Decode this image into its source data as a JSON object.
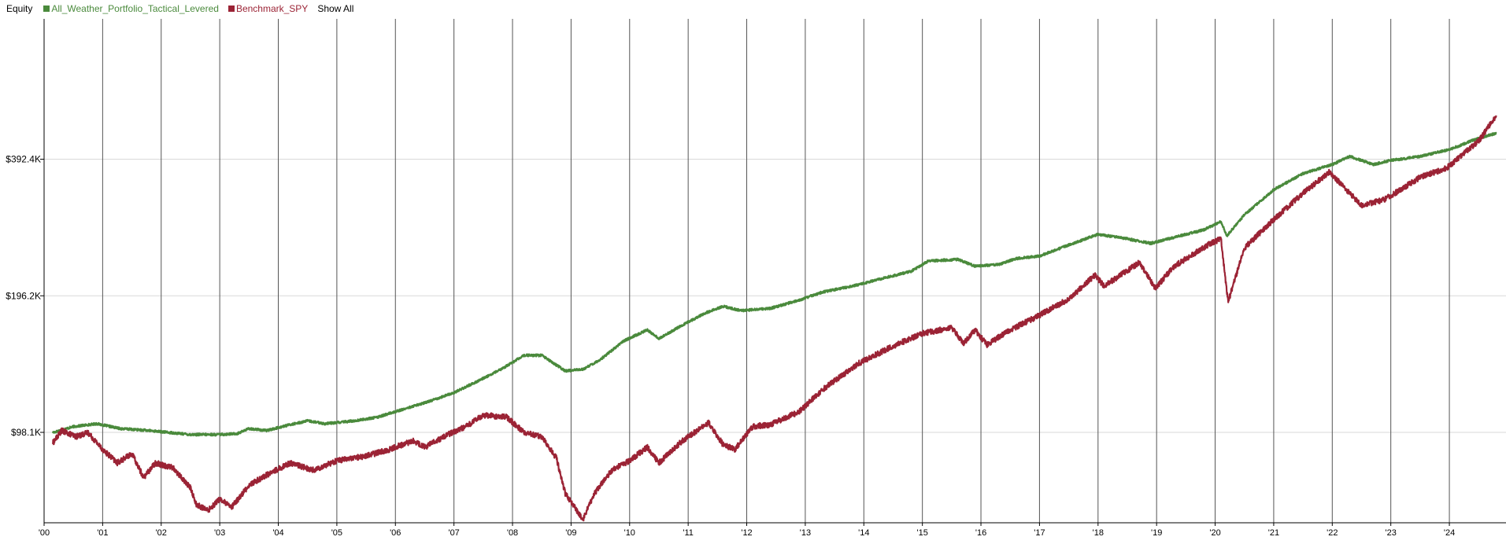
{
  "legend": {
    "title": "Equity",
    "show_all": "Show All"
  },
  "colors": {
    "portfolio": "#4a8a3c",
    "benchmark": "#9b2335",
    "gridline": "#d9d9d9",
    "year_line": "#555555"
  },
  "chart_data": {
    "type": "line",
    "log_scale": true,
    "ylim": [
      62000,
      800000
    ],
    "xlim": [
      2000.0,
      2024.9
    ],
    "y_ticks": [
      {
        "value": 98100,
        "label": "$98.1K"
      },
      {
        "value": 196200,
        "label": "$196.2K"
      },
      {
        "value": 392400,
        "label": "$392.4K"
      }
    ],
    "x_ticks": [
      {
        "value": 2000,
        "label": "'00"
      },
      {
        "value": 2001,
        "label": "'01"
      },
      {
        "value": 2002,
        "label": "'02"
      },
      {
        "value": 2003,
        "label": "'03"
      },
      {
        "value": 2004,
        "label": "'04"
      },
      {
        "value": 2005,
        "label": "'05"
      },
      {
        "value": 2006,
        "label": "'06"
      },
      {
        "value": 2007,
        "label": "'07"
      },
      {
        "value": 2008,
        "label": "'08"
      },
      {
        "value": 2009,
        "label": "'09"
      },
      {
        "value": 2010,
        "label": "'10"
      },
      {
        "value": 2011,
        "label": "'11"
      },
      {
        "value": 2012,
        "label": "'12"
      },
      {
        "value": 2013,
        "label": "'13"
      },
      {
        "value": 2014,
        "label": "'14"
      },
      {
        "value": 2015,
        "label": "'15"
      },
      {
        "value": 2016,
        "label": "'16"
      },
      {
        "value": 2017,
        "label": "'17"
      },
      {
        "value": 2018,
        "label": "'18"
      },
      {
        "value": 2019,
        "label": "'19"
      },
      {
        "value": 2020,
        "label": "'20"
      },
      {
        "value": 2021,
        "label": "'21"
      },
      {
        "value": 2022,
        "label": "'22"
      },
      {
        "value": 2023,
        "label": "'23"
      },
      {
        "value": 2024,
        "label": "'24"
      }
    ],
    "series": [
      {
        "name": "All_Weather_Portfolio_Tactical_Levered",
        "color": "#4a8a3c",
        "points": [
          [
            2000.15,
            98000
          ],
          [
            2000.5,
            101000
          ],
          [
            2000.9,
            102500
          ],
          [
            2001.3,
            100000
          ],
          [
            2001.8,
            99000
          ],
          [
            2002.5,
            97000
          ],
          [
            2003.0,
            97000
          ],
          [
            2003.3,
            97500
          ],
          [
            2003.5,
            100000
          ],
          [
            2003.8,
            99000
          ],
          [
            2004.2,
            102000
          ],
          [
            2004.5,
            104000
          ],
          [
            2004.8,
            102500
          ],
          [
            2005.3,
            104000
          ],
          [
            2005.7,
            106000
          ],
          [
            2006.0,
            109000
          ],
          [
            2006.5,
            114000
          ],
          [
            2007.0,
            120000
          ],
          [
            2007.5,
            129000
          ],
          [
            2007.8,
            135000
          ],
          [
            2008.2,
            145000
          ],
          [
            2008.5,
            145000
          ],
          [
            2008.9,
            134000
          ],
          [
            2009.2,
            135000
          ],
          [
            2009.5,
            142000
          ],
          [
            2009.9,
            156000
          ],
          [
            2010.3,
            165000
          ],
          [
            2010.5,
            158000
          ],
          [
            2010.9,
            169000
          ],
          [
            2011.3,
            180000
          ],
          [
            2011.6,
            186000
          ],
          [
            2011.9,
            182000
          ],
          [
            2012.4,
            184000
          ],
          [
            2012.9,
            192000
          ],
          [
            2013.3,
            200000
          ],
          [
            2013.8,
            206000
          ],
          [
            2014.3,
            214000
          ],
          [
            2014.8,
            222000
          ],
          [
            2015.1,
            234000
          ],
          [
            2015.6,
            236000
          ],
          [
            2015.9,
            228000
          ],
          [
            2016.3,
            230000
          ],
          [
            2016.6,
            237000
          ],
          [
            2017.0,
            240000
          ],
          [
            2017.5,
            254000
          ],
          [
            2018.0,
            268000
          ],
          [
            2018.5,
            262000
          ],
          [
            2018.9,
            256000
          ],
          [
            2019.3,
            264000
          ],
          [
            2019.8,
            274000
          ],
          [
            2020.1,
            286000
          ],
          [
            2020.2,
            266000
          ],
          [
            2020.5,
            296000
          ],
          [
            2021.0,
            336000
          ],
          [
            2021.5,
            365000
          ],
          [
            2022.0,
            382000
          ],
          [
            2022.3,
            398000
          ],
          [
            2022.7,
            382000
          ],
          [
            2023.0,
            390000
          ],
          [
            2023.5,
            398000
          ],
          [
            2024.0,
            412000
          ],
          [
            2024.4,
            432000
          ],
          [
            2024.8,
            448000
          ]
        ]
      },
      {
        "name": "Benchmark_SPY",
        "color": "#9b2335",
        "points": [
          [
            2000.15,
            93000
          ],
          [
            2000.3,
            99000
          ],
          [
            2000.55,
            96000
          ],
          [
            2000.75,
            98000
          ],
          [
            2001.0,
            90000
          ],
          [
            2001.25,
            84000
          ],
          [
            2001.5,
            88000
          ],
          [
            2001.7,
            78000
          ],
          [
            2001.9,
            84000
          ],
          [
            2002.2,
            82000
          ],
          [
            2002.5,
            74000
          ],
          [
            2002.6,
            68000
          ],
          [
            2002.8,
            66000
          ],
          [
            2003.0,
            70000
          ],
          [
            2003.2,
            67000
          ],
          [
            2003.5,
            75000
          ],
          [
            2003.8,
            79000
          ],
          [
            2004.2,
            84000
          ],
          [
            2004.6,
            81000
          ],
          [
            2005.0,
            85000
          ],
          [
            2005.5,
            87000
          ],
          [
            2005.9,
            90000
          ],
          [
            2006.3,
            94000
          ],
          [
            2006.5,
            91000
          ],
          [
            2006.9,
            97000
          ],
          [
            2007.2,
            101000
          ],
          [
            2007.5,
            107000
          ],
          [
            2007.9,
            106000
          ],
          [
            2008.2,
            98000
          ],
          [
            2008.5,
            96000
          ],
          [
            2008.75,
            86000
          ],
          [
            2008.9,
            72000
          ],
          [
            2009.2,
            63000
          ],
          [
            2009.4,
            72000
          ],
          [
            2009.7,
            81000
          ],
          [
            2010.0,
            85000
          ],
          [
            2010.3,
            91000
          ],
          [
            2010.5,
            84000
          ],
          [
            2010.9,
            94000
          ],
          [
            2011.35,
            103000
          ],
          [
            2011.6,
            92000
          ],
          [
            2011.8,
            90000
          ],
          [
            2012.1,
            101000
          ],
          [
            2012.4,
            102000
          ],
          [
            2012.9,
            109000
          ],
          [
            2013.3,
            122000
          ],
          [
            2013.9,
            139000
          ],
          [
            2014.5,
            152000
          ],
          [
            2015.0,
            162000
          ],
          [
            2015.5,
            167000
          ],
          [
            2015.7,
            154000
          ],
          [
            2015.9,
            165000
          ],
          [
            2016.1,
            153000
          ],
          [
            2016.5,
            165000
          ],
          [
            2016.9,
            175000
          ],
          [
            2017.5,
            193000
          ],
          [
            2017.95,
            218000
          ],
          [
            2018.1,
            206000
          ],
          [
            2018.7,
            232000
          ],
          [
            2018.98,
            204000
          ],
          [
            2019.3,
            228000
          ],
          [
            2019.9,
            255000
          ],
          [
            2020.1,
            262000
          ],
          [
            2020.22,
            190000
          ],
          [
            2020.5,
            250000
          ],
          [
            2020.95,
            285000
          ],
          [
            2021.5,
            330000
          ],
          [
            2021.95,
            368000
          ],
          [
            2022.5,
            310000
          ],
          [
            2022.9,
            320000
          ],
          [
            2023.5,
            358000
          ],
          [
            2023.95,
            375000
          ],
          [
            2024.5,
            430000
          ],
          [
            2024.8,
            490000
          ]
        ]
      }
    ]
  }
}
